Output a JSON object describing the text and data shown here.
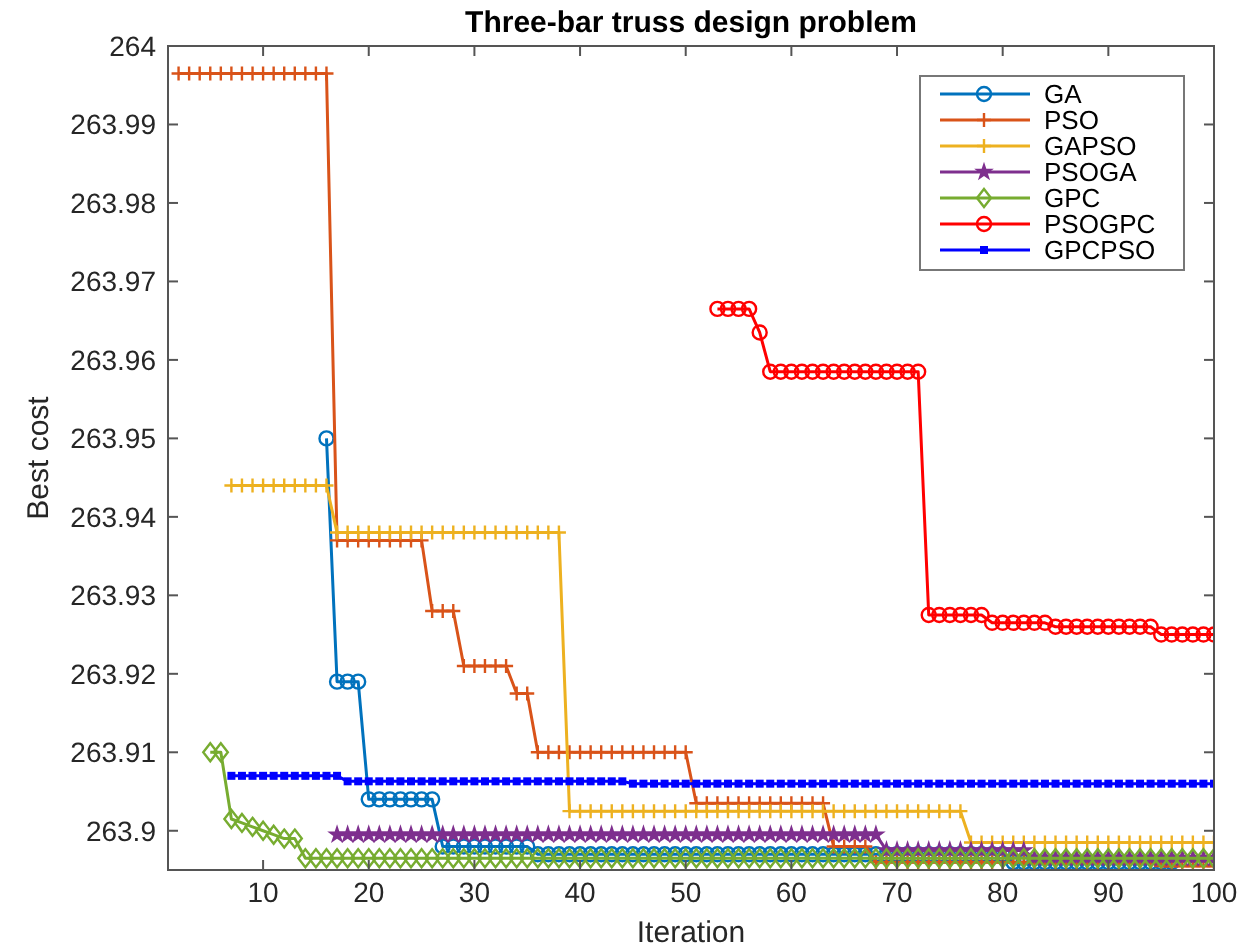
{
  "chart_data": {
    "type": "line",
    "title": "Three-bar truss design problem",
    "xlabel": "Iteration",
    "ylabel": "Best cost",
    "xlim": [
      1,
      100
    ],
    "ylim": [
      263.895,
      264
    ],
    "xticks": [
      10,
      20,
      30,
      40,
      50,
      60,
      70,
      80,
      90,
      100
    ],
    "yticks": [
      263.9,
      263.91,
      263.92,
      263.93,
      263.94,
      263.95,
      263.96,
      263.97,
      263.98,
      263.99,
      264
    ],
    "grid": false,
    "legend": "top right",
    "x": [
      2,
      3,
      4,
      5,
      6,
      7,
      8,
      9,
      10,
      11,
      12,
      13,
      14,
      15,
      16,
      17,
      18,
      19,
      20,
      21,
      22,
      23,
      24,
      25,
      26,
      27,
      28,
      29,
      30,
      31,
      32,
      33,
      34,
      35,
      36,
      37,
      38,
      39,
      40,
      41,
      42,
      43,
      44,
      45,
      46,
      47,
      48,
      49,
      50,
      51,
      52,
      53,
      54,
      55,
      56,
      57,
      58,
      59,
      60,
      61,
      62,
      63,
      64,
      65,
      66,
      67,
      68,
      69,
      70,
      71,
      72,
      73,
      74,
      75,
      76,
      77,
      78,
      79,
      80,
      81,
      82,
      83,
      84,
      85,
      86,
      87,
      88,
      89,
      90,
      91,
      92,
      93,
      94,
      95,
      96,
      97,
      98,
      99,
      100
    ],
    "series": [
      {
        "name": "GA",
        "color": "#0072bd",
        "marker": "circle",
        "values": [
          null,
          null,
          null,
          null,
          null,
          null,
          null,
          null,
          null,
          null,
          null,
          null,
          null,
          null,
          263.95,
          263.919,
          263.919,
          263.919,
          263.904,
          263.904,
          263.904,
          263.904,
          263.904,
          263.904,
          263.904,
          263.898,
          263.898,
          263.898,
          263.898,
          263.898,
          263.898,
          263.898,
          263.898,
          263.898,
          263.897,
          263.897,
          263.897,
          263.897,
          263.897,
          263.897,
          263.897,
          263.897,
          263.897,
          263.897,
          263.897,
          263.897,
          263.897,
          263.897,
          263.897,
          263.897,
          263.897,
          263.897,
          263.897,
          263.897,
          263.897,
          263.897,
          263.897,
          263.897,
          263.897,
          263.897,
          263.897,
          263.897,
          263.897,
          263.897,
          263.897,
          263.897,
          263.897,
          263.897,
          263.897,
          263.897,
          263.897,
          263.897,
          263.897,
          263.897,
          263.897,
          263.897,
          263.897,
          263.897,
          263.897,
          263.896,
          263.896,
          263.896,
          263.896,
          263.896,
          263.896,
          263.896,
          263.896,
          263.896,
          263.896,
          263.896,
          263.896,
          263.896,
          263.896,
          263.896,
          263.896,
          null,
          null,
          null,
          null
        ]
      },
      {
        "name": "PSO",
        "color": "#d95319",
        "marker": "cross",
        "values": [
          263.9965,
          263.9965,
          263.9965,
          263.9965,
          263.9965,
          263.9965,
          263.9965,
          263.9965,
          263.9965,
          263.9965,
          263.9965,
          263.9965,
          263.9965,
          263.9965,
          263.9965,
          263.937,
          263.937,
          263.937,
          263.937,
          263.937,
          263.937,
          263.937,
          263.937,
          263.937,
          263.928,
          263.928,
          263.928,
          263.921,
          263.921,
          263.921,
          263.921,
          263.921,
          263.9175,
          263.9175,
          263.91,
          263.91,
          263.91,
          263.91,
          263.91,
          263.91,
          263.91,
          263.91,
          263.91,
          263.91,
          263.91,
          263.91,
          263.91,
          263.91,
          263.91,
          263.9035,
          263.9035,
          263.9035,
          263.9035,
          263.9035,
          263.9035,
          263.9035,
          263.9035,
          263.9035,
          263.9035,
          263.9035,
          263.9035,
          263.9035,
          263.898,
          263.898,
          263.898,
          263.898,
          263.896,
          263.896,
          263.896,
          263.896,
          263.896,
          263.896,
          263.896,
          263.896,
          263.896,
          263.896,
          263.896,
          263.896,
          263.896,
          263.896,
          263.896,
          263.896,
          263.896,
          263.896,
          263.896,
          263.896,
          263.896,
          263.896,
          263.896,
          263.896,
          263.896,
          263.896,
          263.896,
          263.8955,
          263.8955,
          263.8955,
          263.8955,
          263.8955,
          263.8955
        ]
      },
      {
        "name": "GAPSO",
        "color": "#edb120",
        "marker": "cross",
        "values": [
          null,
          null,
          null,
          null,
          null,
          263.944,
          263.944,
          263.944,
          263.944,
          263.944,
          263.944,
          263.944,
          263.944,
          263.944,
          263.944,
          263.938,
          263.938,
          263.938,
          263.938,
          263.938,
          263.938,
          263.938,
          263.938,
          263.938,
          263.938,
          263.938,
          263.938,
          263.938,
          263.938,
          263.938,
          263.938,
          263.938,
          263.938,
          263.938,
          263.938,
          263.938,
          263.938,
          263.9025,
          263.9025,
          263.9025,
          263.9025,
          263.9025,
          263.9025,
          263.9025,
          263.9025,
          263.9025,
          263.9025,
          263.9025,
          263.9025,
          263.9025,
          263.9025,
          263.9025,
          263.9025,
          263.9025,
          263.9025,
          263.9025,
          263.9025,
          263.9025,
          263.9025,
          263.9025,
          263.9025,
          263.9025,
          263.9025,
          263.9025,
          263.9025,
          263.9025,
          263.9025,
          263.9025,
          263.9025,
          263.9025,
          263.9025,
          263.9025,
          263.9025,
          263.9025,
          263.9025,
          263.8985,
          263.8985,
          263.8985,
          263.8985,
          263.8985,
          263.8985,
          263.8985,
          263.8985,
          263.8985,
          263.8985,
          263.8985,
          263.8985,
          263.8985,
          263.8985,
          263.8985,
          263.8985,
          263.8985,
          263.8985,
          263.8985,
          263.8985,
          263.8985,
          263.8985,
          263.8985,
          263.8985
        ]
      },
      {
        "name": "PSOGA",
        "color": "#7e2f8e",
        "marker": "star",
        "values": [
          null,
          null,
          null,
          null,
          null,
          null,
          null,
          null,
          null,
          null,
          null,
          null,
          null,
          null,
          null,
          263.8995,
          263.8995,
          263.8995,
          263.8995,
          263.8995,
          263.8995,
          263.8995,
          263.8995,
          263.8995,
          263.8995,
          263.8995,
          263.8995,
          263.8995,
          263.8995,
          263.8995,
          263.8995,
          263.8995,
          263.8995,
          263.8995,
          263.8995,
          263.8995,
          263.8995,
          263.8995,
          263.8995,
          263.8995,
          263.8995,
          263.8995,
          263.8995,
          263.8995,
          263.8995,
          263.8995,
          263.8995,
          263.8995,
          263.8995,
          263.8995,
          263.8995,
          263.8995,
          263.8995,
          263.8995,
          263.8995,
          263.8995,
          263.8995,
          263.8995,
          263.8995,
          263.8995,
          263.8995,
          263.8995,
          263.8995,
          263.8995,
          263.8995,
          263.8995,
          263.8995,
          263.8975,
          263.8975,
          263.8975,
          263.8975,
          263.8975,
          263.8975,
          263.8975,
          263.8975,
          263.8975,
          263.8975,
          263.8975,
          263.8975,
          263.8975,
          263.8975,
          263.8965,
          263.8965,
          263.8965,
          263.8965,
          263.8965,
          263.8965,
          263.8965,
          263.8965,
          263.8965,
          263.8965,
          263.8965,
          263.8965,
          263.8965,
          263.8965,
          263.8965,
          263.8965,
          263.8965,
          263.8965
        ]
      },
      {
        "name": "GPC",
        "color": "#77ac30",
        "marker": "diamond",
        "values": [
          null,
          null,
          null,
          263.91,
          263.91,
          263.9015,
          263.901,
          263.9005,
          263.9,
          263.8995,
          263.899,
          263.899,
          263.8965,
          263.8965,
          263.8965,
          263.8965,
          263.8965,
          263.8965,
          263.8965,
          263.8965,
          263.8965,
          263.8965,
          263.8965,
          263.8965,
          263.8965,
          263.8965,
          263.8965,
          263.8965,
          263.8965,
          263.8965,
          263.8965,
          263.8965,
          263.8965,
          263.8965,
          263.8965,
          263.8965,
          263.8965,
          263.8965,
          263.8965,
          263.8965,
          263.8965,
          263.8965,
          263.8965,
          263.8965,
          263.8965,
          263.8965,
          263.8965,
          263.8965,
          263.8965,
          263.8965,
          263.8965,
          263.8965,
          263.8965,
          263.8965,
          263.8965,
          263.8965,
          263.8965,
          263.8965,
          263.8965,
          263.8965,
          263.8965,
          263.8965,
          263.8965,
          263.8965,
          263.8965,
          263.8965,
          263.8965,
          263.8965,
          263.8965,
          263.8965,
          263.8965,
          263.8965,
          263.8965,
          263.8965,
          263.8965,
          263.8965,
          263.8965,
          263.8965,
          263.8965,
          263.8965,
          263.8965,
          263.8965,
          263.8965,
          263.8965,
          263.8965,
          263.8965,
          263.8965,
          263.8965,
          263.8965,
          263.8965,
          263.8965,
          263.8965,
          263.8965,
          263.8965,
          263.8965,
          263.8965,
          263.8965,
          263.8965,
          263.8965
        ]
      },
      {
        "name": "PSOGPC",
        "color": "#ff0000",
        "marker": "circle",
        "values": [
          null,
          null,
          null,
          null,
          null,
          null,
          null,
          null,
          null,
          null,
          null,
          null,
          null,
          null,
          null,
          null,
          null,
          null,
          null,
          null,
          null,
          null,
          null,
          null,
          null,
          null,
          null,
          null,
          null,
          null,
          null,
          null,
          null,
          null,
          null,
          null,
          null,
          null,
          null,
          null,
          null,
          null,
          null,
          null,
          null,
          null,
          null,
          null,
          null,
          null,
          null,
          263.9665,
          263.9665,
          263.9665,
          263.9665,
          263.9635,
          263.9585,
          263.9585,
          263.9585,
          263.9585,
          263.9585,
          263.9585,
          263.9585,
          263.9585,
          263.9585,
          263.9585,
          263.9585,
          263.9585,
          263.9585,
          263.9585,
          263.9585,
          263.9275,
          263.9275,
          263.9275,
          263.9275,
          263.9275,
          263.9275,
          263.9265,
          263.9265,
          263.9265,
          263.9265,
          263.9265,
          263.9265,
          263.926,
          263.926,
          263.926,
          263.926,
          263.926,
          263.926,
          263.926,
          263.926,
          263.926,
          263.926,
          263.925,
          263.925,
          263.925,
          263.925,
          263.925,
          263.925
        ]
      },
      {
        "name": "GPCPSO",
        "color": "#0000ff",
        "marker": "square",
        "values": [
          null,
          null,
          null,
          null,
          null,
          263.907,
          263.907,
          263.907,
          263.907,
          263.907,
          263.907,
          263.907,
          263.907,
          263.907,
          263.907,
          263.907,
          263.9063,
          263.9063,
          263.9063,
          263.9063,
          263.9063,
          263.9063,
          263.9063,
          263.9063,
          263.9063,
          263.9063,
          263.9063,
          263.9063,
          263.9063,
          263.9063,
          263.9063,
          263.9063,
          263.9063,
          263.9063,
          263.9063,
          263.9063,
          263.9063,
          263.9063,
          263.9063,
          263.9063,
          263.9063,
          263.9063,
          263.9063,
          263.906,
          263.906,
          263.906,
          263.906,
          263.906,
          263.906,
          263.906,
          263.906,
          263.906,
          263.906,
          263.906,
          263.906,
          263.906,
          263.906,
          263.906,
          263.906,
          263.906,
          263.906,
          263.906,
          263.906,
          263.906,
          263.906,
          263.906,
          263.906,
          263.906,
          263.906,
          263.906,
          263.906,
          263.906,
          263.906,
          263.906,
          263.906,
          263.906,
          263.906,
          263.906,
          263.906,
          263.906,
          263.906,
          263.906,
          263.906,
          263.906,
          263.906,
          263.906,
          263.906,
          263.906,
          263.906,
          263.906,
          263.906,
          263.906,
          263.906,
          263.906,
          263.906,
          263.906,
          263.906,
          263.906,
          263.906
        ]
      }
    ]
  }
}
